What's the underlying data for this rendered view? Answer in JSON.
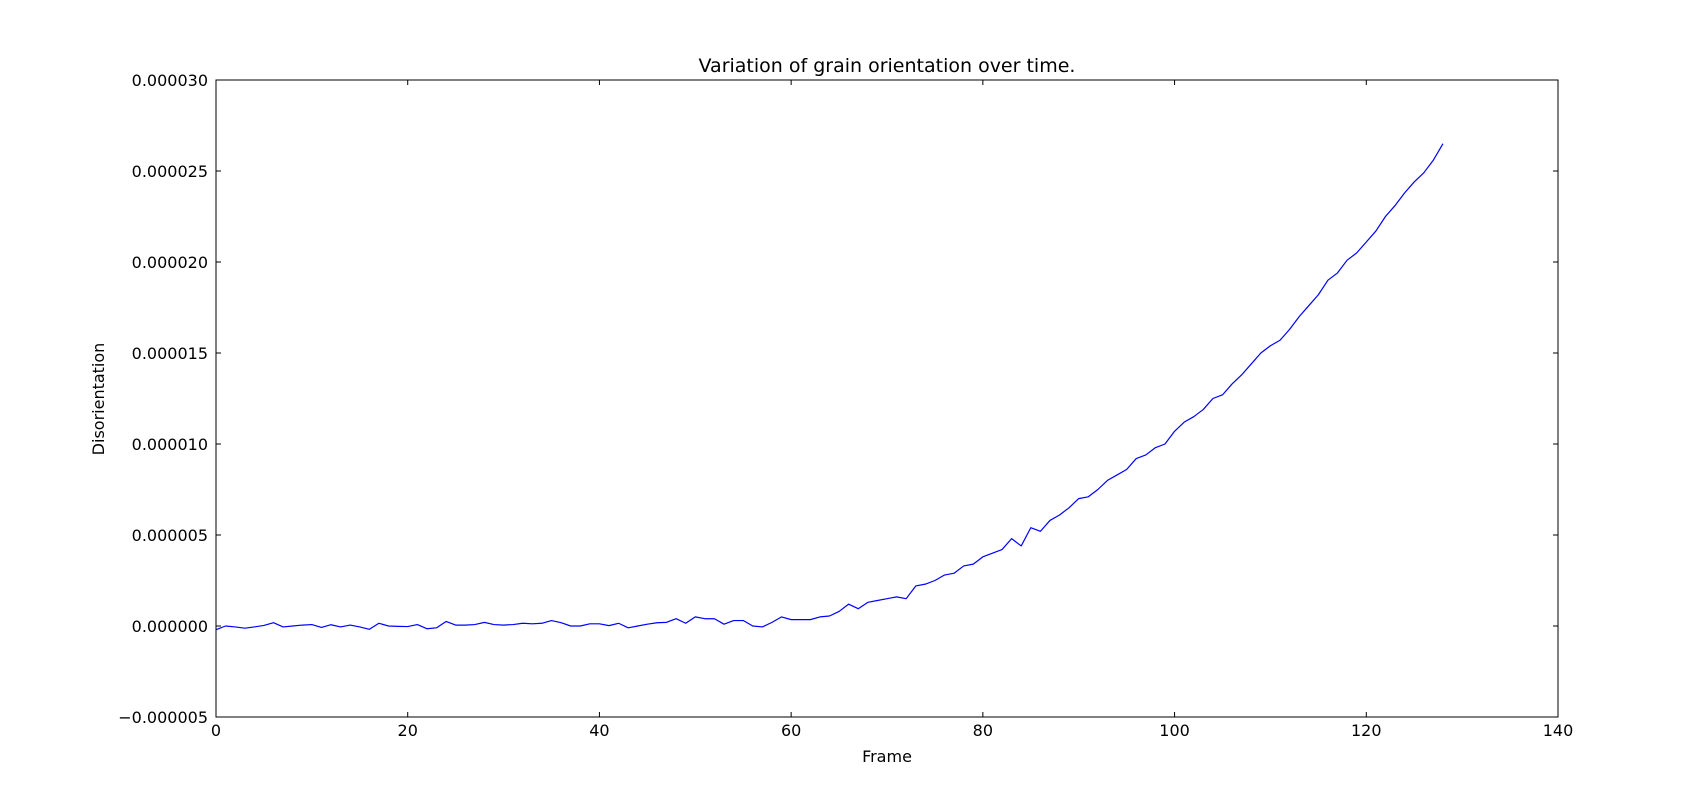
{
  "chart_data": {
    "type": "line",
    "title": "Variation of grain orientation over time.",
    "xlabel": "Frame",
    "ylabel": "Disorientation",
    "xlim": [
      0,
      140
    ],
    "ylim": [
      -5e-06,
      3e-05
    ],
    "xticks": [
      0,
      20,
      40,
      60,
      80,
      100,
      120,
      140
    ],
    "xtick_labels": [
      "0",
      "20",
      "40",
      "60",
      "80",
      "100",
      "120",
      "140"
    ],
    "yticks": [
      -5e-06,
      0,
      5e-06,
      1e-05,
      1.5e-05,
      2e-05,
      2.5e-05,
      3e-05
    ],
    "ytick_labels": [
      "−0.000005",
      "0.000000",
      "0.000005",
      "0.000010",
      "0.000015",
      "0.000020",
      "0.000025",
      "0.000030"
    ],
    "grid": false,
    "legend": "none",
    "series": [
      {
        "color": "#0000ff",
        "x": [
          0,
          1,
          2,
          3,
          4,
          5,
          6,
          7,
          8,
          9,
          10,
          11,
          12,
          13,
          14,
          15,
          16,
          17,
          18,
          19,
          20,
          21,
          22,
          23,
          24,
          25,
          26,
          27,
          28,
          29,
          30,
          31,
          32,
          33,
          34,
          35,
          36,
          37,
          38,
          39,
          40,
          41,
          42,
          43,
          44,
          45,
          46,
          47,
          48,
          49,
          50,
          51,
          52,
          53,
          54,
          55,
          56,
          57,
          58,
          59,
          60,
          61,
          62,
          63,
          64,
          65,
          66,
          67,
          68,
          69,
          70,
          71,
          72,
          73,
          74,
          75,
          76,
          77,
          78,
          79,
          80,
          81,
          82,
          83,
          84,
          85,
          86,
          87,
          88,
          89,
          90,
          91,
          92,
          93,
          94,
          95,
          96,
          97,
          98,
          99,
          100,
          101,
          102,
          103,
          104,
          105,
          106,
          107,
          108,
          109,
          110,
          111,
          112,
          113,
          114,
          115,
          116,
          117,
          118,
          119,
          120,
          121,
          122,
          123,
          124,
          125,
          126,
          127,
          128
        ],
        "values": [
          -2e-07,
          0.0,
          -5e-08,
          -1.2e-07,
          -5e-08,
          3e-08,
          1.8e-07,
          -5e-08,
          0.0,
          5e-08,
          8e-08,
          -8e-08,
          7e-08,
          -5e-08,
          5e-08,
          -5e-08,
          -1.8e-07,
          1.5e-07,
          0.0,
          -2e-08,
          -3e-08,
          8e-08,
          -1.5e-07,
          -1e-07,
          2.5e-07,
          5e-08,
          5e-08,
          8e-08,
          2e-07,
          8e-08,
          5e-08,
          8e-08,
          1.5e-07,
          1.2e-07,
          1.5e-07,
          3e-07,
          1.8e-07,
          0.0,
          0.0,
          1.2e-07,
          1.2e-07,
          2e-08,
          1.5e-07,
          -1e-07,
          0.0,
          1e-07,
          1.8e-07,
          2e-07,
          4e-07,
          1.5e-07,
          5e-07,
          4e-07,
          4e-07,
          1e-07,
          3e-07,
          3e-07,
          0.0,
          -5e-08,
          2e-07,
          5e-07,
          3.5e-07,
          3.5e-07,
          3.5e-07,
          5e-07,
          5.5e-07,
          8e-07,
          1.2e-06,
          9.5e-07,
          1.3e-06,
          1.4e-06,
          1.5e-06,
          1.6e-06,
          1.5e-06,
          2.2e-06,
          2.3e-06,
          2.5e-06,
          2.8e-06,
          2.9e-06,
          3.3e-06,
          3.4e-06,
          3.8e-06,
          4e-06,
          4.2e-06,
          4.8e-06,
          4.4e-06,
          5.4e-06,
          5.2e-06,
          5.8e-06,
          6.1e-06,
          6.5e-06,
          7e-06,
          7.1e-06,
          7.5e-06,
          8e-06,
          8.3e-06,
          8.6e-06,
          9.2e-06,
          9.4e-06,
          9.8e-06,
          1e-05,
          1.07e-05,
          1.12e-05,
          1.15e-05,
          1.19e-05,
          1.25e-05,
          1.27e-05,
          1.33e-05,
          1.38e-05,
          1.44e-05,
          1.5e-05,
          1.54e-05,
          1.57e-05,
          1.63e-05,
          1.7e-05,
          1.76e-05,
          1.82e-05,
          1.9e-05,
          1.94e-05,
          2.01e-05,
          2.05e-05,
          2.11e-05,
          2.17e-05,
          2.25e-05,
          2.31e-05,
          2.38e-05,
          2.44e-05,
          2.49e-05,
          2.56e-05,
          2.65e-05
        ]
      }
    ]
  }
}
